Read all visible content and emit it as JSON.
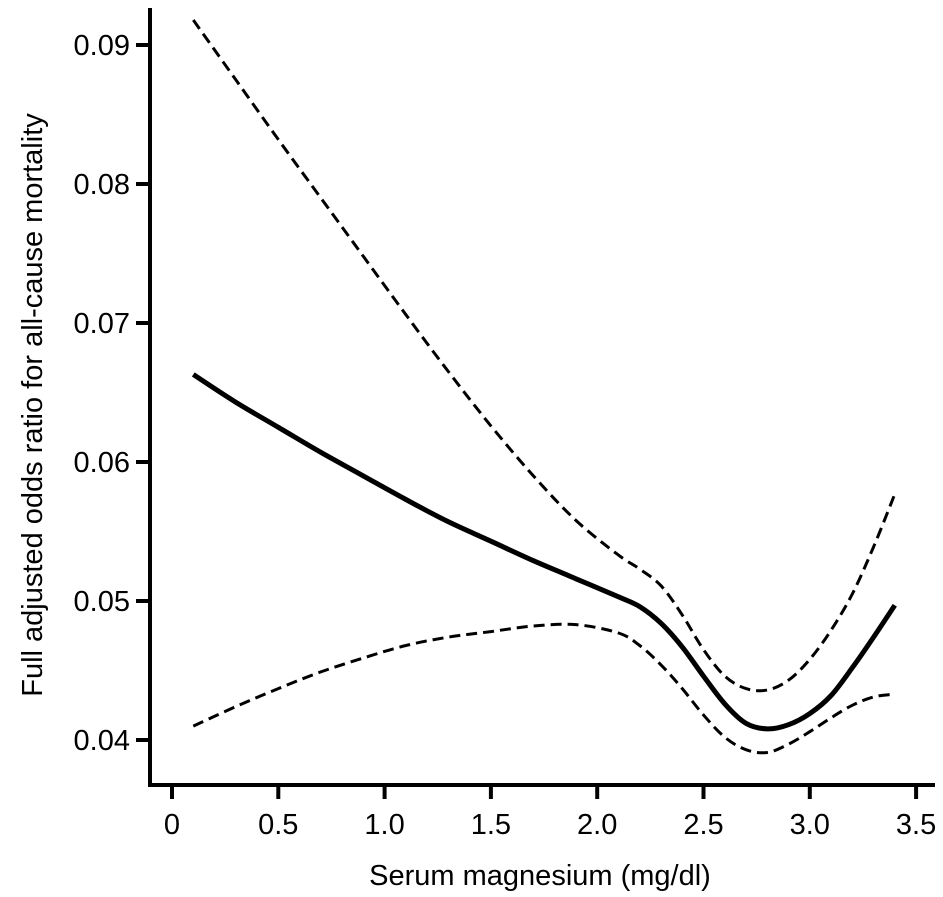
{
  "chart_data": {
    "type": "line",
    "xlabel": "Serum magnesium (mg/dl)",
    "ylabel": "Full adjusted odds ratio for all-cause mortality",
    "xlim": [
      -0.05,
      3.6
    ],
    "ylim": [
      0.0355,
      0.0955
    ],
    "xticks": [
      0,
      0.5,
      1.0,
      1.5,
      2.0,
      2.5,
      3.0,
      3.5
    ],
    "xtick_labels": [
      "0",
      "0.5",
      "1.0",
      "1.5",
      "2.0",
      "2.5",
      "3.0",
      "3.5"
    ],
    "yticks": [
      0.04,
      0.05,
      0.06,
      0.07,
      0.08,
      0.09
    ],
    "ytick_labels": [
      "0.04",
      "0.05",
      "0.06",
      "0.07",
      "0.08",
      "0.09"
    ],
    "grid": false,
    "legend": "none",
    "series": [
      {
        "style": "solid",
        "x": [
          0.1,
          0.3,
          0.5,
          0.7,
          0.9,
          1.1,
          1.3,
          1.5,
          1.7,
          1.9,
          2.1,
          2.2,
          2.3,
          2.4,
          2.5,
          2.6,
          2.7,
          2.8,
          2.9,
          3.0,
          3.1,
          3.2,
          3.3,
          3.4
        ],
        "y": [
          0.0663,
          0.0643,
          0.0625,
          0.0607,
          0.059,
          0.0573,
          0.0557,
          0.0543,
          0.0529,
          0.0516,
          0.0503,
          0.0496,
          0.0484,
          0.0467,
          0.0446,
          0.0426,
          0.0412,
          0.0408,
          0.0411,
          0.0419,
          0.0432,
          0.0452,
          0.0474,
          0.0497
        ]
      },
      {
        "style": "dashed",
        "x": [
          0.1,
          0.3,
          0.5,
          0.7,
          0.9,
          1.1,
          1.3,
          1.5,
          1.7,
          1.9,
          2.1,
          2.2,
          2.3,
          2.4,
          2.5,
          2.6,
          2.7,
          2.8,
          2.9,
          3.0,
          3.1,
          3.2,
          3.3,
          3.4
        ],
        "y": [
          0.0918,
          0.0875,
          0.0832,
          0.079,
          0.0748,
          0.0706,
          0.0665,
          0.0626,
          0.059,
          0.0558,
          0.0533,
          0.0523,
          0.0511,
          0.049,
          0.0465,
          0.0446,
          0.0437,
          0.0436,
          0.0443,
          0.0458,
          0.0479,
          0.0505,
          0.0539,
          0.0577
        ]
      },
      {
        "style": "dashed",
        "x": [
          0.1,
          0.3,
          0.5,
          0.7,
          0.9,
          1.1,
          1.3,
          1.5,
          1.7,
          1.9,
          2.1,
          2.2,
          2.3,
          2.4,
          2.5,
          2.6,
          2.7,
          2.8,
          2.9,
          3.0,
          3.1,
          3.2,
          3.3,
          3.4
        ],
        "y": [
          0.041,
          0.0424,
          0.0437,
          0.0449,
          0.0459,
          0.0468,
          0.0474,
          0.0478,
          0.0482,
          0.0483,
          0.0477,
          0.0468,
          0.0454,
          0.0437,
          0.0418,
          0.0402,
          0.0393,
          0.0391,
          0.0397,
          0.0406,
          0.0416,
          0.0425,
          0.0431,
          0.0433
        ]
      }
    ]
  }
}
